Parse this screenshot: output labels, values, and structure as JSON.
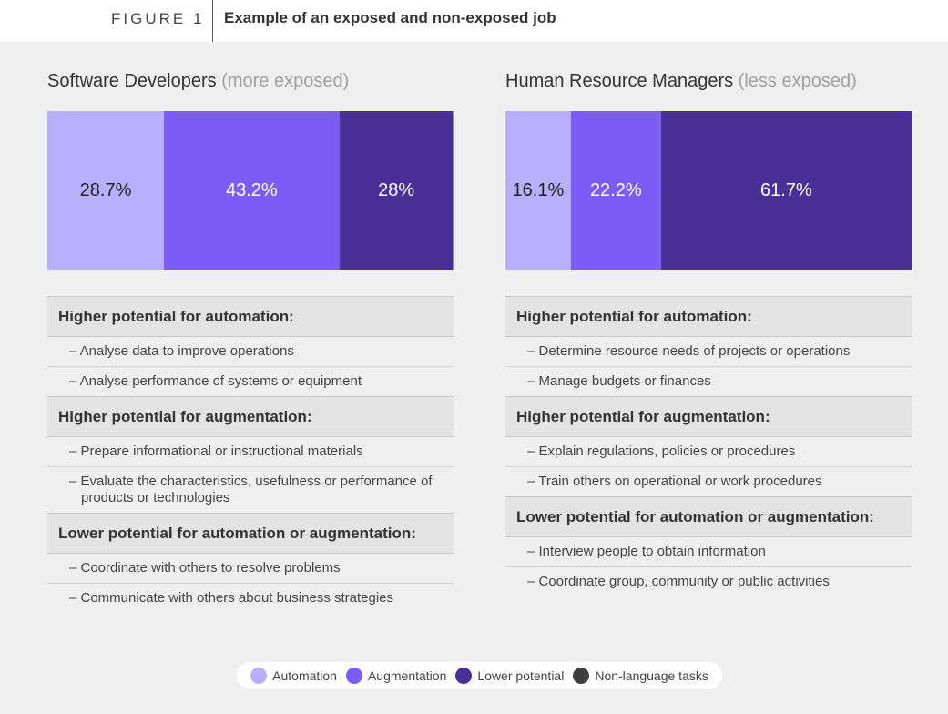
{
  "figure": {
    "label": "FIGURE 1",
    "title": "Example of an exposed and non-exposed job"
  },
  "legend": [
    {
      "name": "Automation",
      "color": "#b9aefa"
    },
    {
      "name": "Augmentation",
      "color": "#7b5cf5"
    },
    {
      "name": "Lower potential",
      "color": "#4a2f96"
    },
    {
      "name": "Non-language tasks",
      "color": "#3e3e3e"
    }
  ],
  "chart_data": [
    {
      "type": "stacked_bar",
      "title": "Software Developers",
      "subtitle": "(more exposed)",
      "xlim": [
        0,
        100
      ],
      "series": [
        {
          "values": [
            28.7
          ],
          "value_labels": [
            "28.7%"
          ]
        },
        {
          "values": [
            43.2
          ],
          "value_labels": [
            "43.2%"
          ]
        },
        {
          "values": [
            28
          ],
          "value_labels": [
            "28%"
          ]
        }
      ],
      "sections": [
        {
          "heading": "Higher potential for automation:",
          "items": [
            "– Analyse data to improve operations",
            "– Analyse performance of systems or equipment"
          ]
        },
        {
          "heading": "Higher potential for augmentation:",
          "items": [
            "– Prepare informational or instructional materials",
            "– Evaluate the characteristics, usefulness or performance of products or technologies"
          ]
        },
        {
          "heading": "Lower potential for automation or augmentation:",
          "items": [
            "– Coordinate with others to resolve problems",
            "– Communicate with others about business strategies"
          ]
        }
      ]
    },
    {
      "type": "stacked_bar",
      "title": "Human Resource Managers",
      "subtitle": "(less exposed)",
      "xlim": [
        0,
        100
      ],
      "series": [
        {
          "values": [
            16.1
          ],
          "value_labels": [
            "16.1%"
          ]
        },
        {
          "values": [
            22.2
          ],
          "value_labels": [
            "22.2%"
          ]
        },
        {
          "values": [
            61.7
          ],
          "value_labels": [
            "61.7%"
          ]
        }
      ],
      "sections": [
        {
          "heading": "Higher potential for automation:",
          "items": [
            "– Determine resource needs of projects or operations",
            "– Manage budgets or finances"
          ]
        },
        {
          "heading": "Higher potential for augmentation:",
          "items": [
            "– Explain regulations, policies or procedures",
            "– Train others on operational or work procedures"
          ]
        },
        {
          "heading": "Lower potential for automation or augmentation:",
          "items": [
            "– Interview people to obtain information",
            "– Coordinate group, community or public activities"
          ]
        }
      ]
    }
  ]
}
